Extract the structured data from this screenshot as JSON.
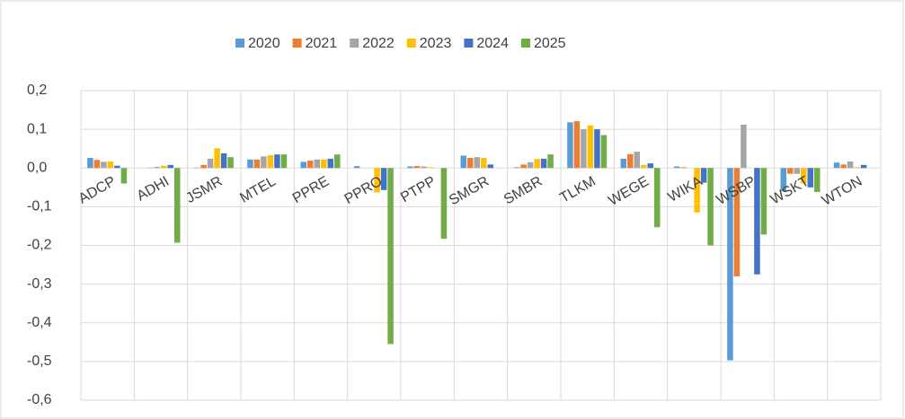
{
  "chart_data": {
    "type": "bar",
    "categories": [
      "ADCP",
      "ADHI",
      "JSMR",
      "MTEL",
      "PPRE",
      "PPRO",
      "PTPP",
      "SMGR",
      "SMBR",
      "TLKM",
      "WEGE",
      "WIKA",
      "WSBP",
      "WSKT",
      "WTON"
    ],
    "series": [
      {
        "name": "2020",
        "color": "#5b9bd5",
        "values": [
          0.026,
          0,
          0.001,
          0.022,
          0.016,
          0.005,
          0.004,
          0.032,
          0.002,
          0.118,
          0.024,
          0.004,
          -0.497,
          -0.06,
          0.014
        ]
      },
      {
        "name": "2021",
        "color": "#ed7d31",
        "values": [
          0.021,
          0.001,
          0.008,
          0.022,
          0.019,
          0,
          0.005,
          0.026,
          0.009,
          0.121,
          0.036,
          0.002,
          -0.28,
          -0.015,
          0.009
        ]
      },
      {
        "name": "2022",
        "color": "#a5a5a5",
        "values": [
          0.016,
          0.003,
          0.024,
          0.03,
          0.022,
          0,
          0.004,
          0.028,
          0.015,
          0.1,
          0.042,
          0,
          0.112,
          -0.015,
          0.017
        ]
      },
      {
        "name": "2023",
        "color": "#ffc000",
        "values": [
          0.017,
          0.006,
          0.051,
          0.033,
          0.022,
          -0.063,
          0.002,
          0.026,
          0.023,
          0.11,
          0.008,
          -0.115,
          0,
          -0.04,
          0.002
        ]
      },
      {
        "name": "2024",
        "color": "#4472c4",
        "values": [
          0.006,
          0.008,
          0.038,
          0.035,
          0.024,
          -0.057,
          0,
          0.009,
          0.024,
          0.1,
          0.012,
          -0.038,
          -0.275,
          -0.05,
          0.008
        ]
      },
      {
        "name": "2025",
        "color": "#70ad47",
        "values": [
          -0.04,
          -0.193,
          0.028,
          0.035,
          0.035,
          -0.455,
          -0.183,
          0,
          0.035,
          0.085,
          -0.153,
          -0.2,
          -0.172,
          -0.062,
          0
        ]
      }
    ],
    "ylim": [
      -0.6,
      0.2
    ],
    "yticks": [
      {
        "value": 0.2,
        "label": "0,2"
      },
      {
        "value": 0.1,
        "label": "0,1"
      },
      {
        "value": 0,
        "label": "0,0"
      },
      {
        "value": -0.1,
        "label": "-0,1"
      },
      {
        "value": -0.2,
        "label": "-0,2"
      },
      {
        "value": -0.3,
        "label": "-0,3"
      },
      {
        "value": -0.4,
        "label": "-0,4"
      },
      {
        "value": -0.5,
        "label": "-0,5"
      },
      {
        "value": -0.6,
        "label": "-0,6"
      }
    ],
    "grid": true,
    "legend": "top"
  }
}
